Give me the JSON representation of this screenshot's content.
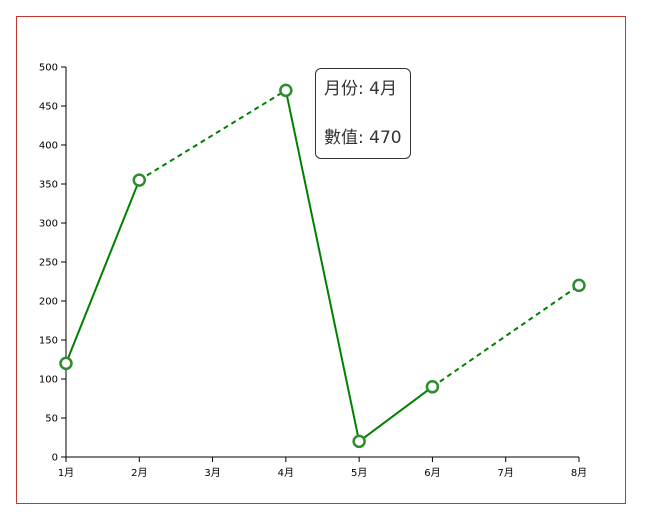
{
  "chart_data": {
    "type": "line",
    "categories": [
      "1月",
      "2月",
      "3月",
      "4月",
      "5月",
      "6月",
      "7月",
      "8月"
    ],
    "points": [
      {
        "x": "1月",
        "y": 120
      },
      {
        "x": "2月",
        "y": 355
      },
      {
        "x": "4月",
        "y": 470
      },
      {
        "x": "5月",
        "y": 20
      },
      {
        "x": "6月",
        "y": 90
      },
      {
        "x": "8月",
        "y": 220
      }
    ],
    "segment_styles": [
      "solid",
      "dashed",
      "solid",
      "solid",
      "dashed"
    ],
    "y_ticks": [
      0,
      50,
      100,
      150,
      200,
      250,
      300,
      350,
      400,
      450,
      500
    ],
    "ylim": [
      0,
      500
    ],
    "title": "",
    "xlabel": "",
    "ylabel": "",
    "grid": false,
    "line_color": "#008000",
    "marker_stroke": "#2e8b2e"
  },
  "tooltip": {
    "month_label": "月份",
    "month_value": "4月",
    "value_label": "數值",
    "value_value": "470"
  },
  "frame_color": "#c0392b"
}
